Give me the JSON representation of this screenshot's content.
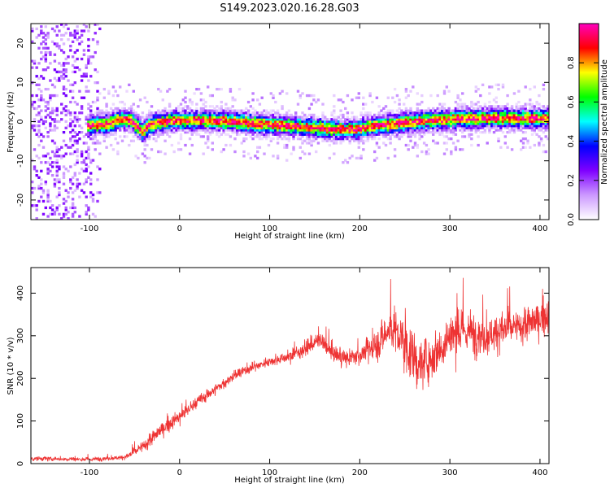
{
  "title": "S149.2023.020.16.28.G03",
  "chart_data": [
    {
      "type": "heatmap",
      "xlabel": "Height of straight line (km)",
      "ylabel": "Frequency (Hz)",
      "xlim": [
        -165,
        410
      ],
      "ylim": [
        -25,
        25
      ],
      "x_ticks": [
        -100,
        0,
        100,
        200,
        300,
        400
      ],
      "y_ticks": [
        -20,
        -10,
        0,
        10,
        20
      ],
      "colorbar": {
        "label": "Normalized spectral amplitude",
        "range": [
          0,
          1
        ],
        "ticks": [
          "0.0",
          "0.2",
          "0.4",
          "0.6",
          "0.8"
        ],
        "tick_values": [
          0.0,
          0.2,
          0.4,
          0.6,
          0.8
        ],
        "colors": [
          "#ffffff",
          "#cc99ff",
          "#7f00ff",
          "#0000ff",
          "#00ffff",
          "#00ff00",
          "#ffff00",
          "#ff0000",
          "#ff00bf"
        ]
      },
      "ridge": {
        "x": [
          -100,
          -80,
          -65,
          -55,
          -48,
          -42,
          -35,
          -25,
          -10,
          0,
          20,
          40,
          60,
          80,
          100,
          120,
          140,
          160,
          180,
          195,
          210,
          230,
          250,
          270,
          290,
          310,
          330,
          350,
          370,
          390,
          410
        ],
        "y": [
          -1.2,
          -0.8,
          0.5,
          0.0,
          -1.5,
          -2.8,
          -1.2,
          -0.5,
          0.0,
          0.0,
          0.0,
          0.0,
          -0.3,
          -0.8,
          -1.0,
          -1.3,
          -1.6,
          -2.0,
          -2.3,
          -2.2,
          -1.5,
          -1.0,
          -0.5,
          0.0,
          0.2,
          0.5,
          0.6,
          0.6,
          0.6,
          0.6,
          0.6
        ]
      },
      "noise_region_x": [
        -165,
        -85
      ]
    },
    {
      "type": "line",
      "xlabel": "Height of straight line (km)",
      "ylabel": "SNR (10 * v/v)",
      "xlim": [
        -165,
        410
      ],
      "ylim": [
        0,
        460
      ],
      "x_ticks": [
        -100,
        0,
        100,
        200,
        300,
        400
      ],
      "y_ticks": [
        0,
        100,
        200,
        300,
        400
      ],
      "color": "#ee3333",
      "trend": {
        "x": [
          -165,
          -100,
          -60,
          -40,
          -20,
          0,
          20,
          40,
          60,
          80,
          100,
          120,
          140,
          155,
          170,
          185,
          200,
          220,
          235,
          250,
          265,
          280,
          300,
          320,
          340,
          360,
          380,
          400,
          410
        ],
        "y": [
          12,
          10,
          15,
          40,
          80,
          110,
          145,
          175,
          205,
          225,
          240,
          250,
          270,
          290,
          260,
          245,
          255,
          280,
          320,
          280,
          230,
          250,
          300,
          310,
          300,
          315,
          320,
          340,
          350
        ]
      },
      "noise_amp": {
        "x": [
          -165,
          -60,
          -40,
          0,
          100,
          150,
          200,
          230,
          250,
          280,
          300,
          340,
          400,
          410
        ],
        "y": [
          8,
          8,
          25,
          25,
          15,
          30,
          30,
          70,
          100,
          80,
          90,
          70,
          60,
          60
        ]
      }
    }
  ]
}
